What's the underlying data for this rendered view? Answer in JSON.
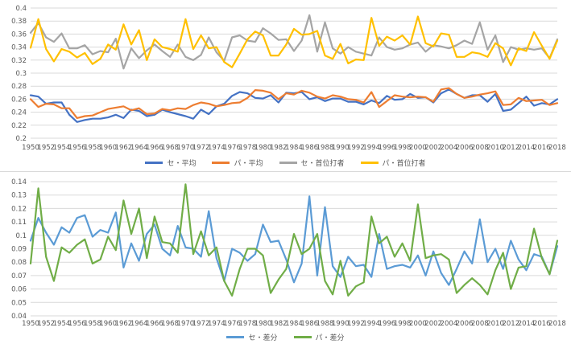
{
  "chart_data": [
    {
      "type": "line",
      "x": [
        1950,
        1951,
        1952,
        1953,
        1954,
        1955,
        1956,
        1957,
        1958,
        1959,
        1960,
        1961,
        1962,
        1963,
        1964,
        1965,
        1966,
        1967,
        1968,
        1969,
        1970,
        1971,
        1972,
        1973,
        1974,
        1975,
        1976,
        1977,
        1978,
        1979,
        1980,
        1981,
        1982,
        1983,
        1984,
        1985,
        1986,
        1987,
        1988,
        1989,
        1990,
        1991,
        1992,
        1993,
        1994,
        1995,
        1996,
        1997,
        1998,
        1999,
        2000,
        2001,
        2002,
        2003,
        2004,
        2005,
        2006,
        2007,
        2008,
        2009,
        2010,
        2011,
        2012,
        2013,
        2014,
        2015,
        2016,
        2017,
        2018
      ],
      "xticks": [
        "1950",
        "1952",
        "1954",
        "1956",
        "1958",
        "1960",
        "1962",
        "1964",
        "1966",
        "1968",
        "1970",
        "1972",
        "1974",
        "1976",
        "1978",
        "1980",
        "1982",
        "1984",
        "1986",
        "1988",
        "1990",
        "1992",
        "1994",
        "1996",
        "1998",
        "2000",
        "2002",
        "2004",
        "2006",
        "2008",
        "2010",
        "2012",
        "2014",
        "2016",
        "2018"
      ],
      "ylim": [
        0.2,
        0.4
      ],
      "yticks": [
        "0.2",
        "0.22",
        "0.24",
        "0.26",
        "0.28",
        "0.3",
        "0.32",
        "0.34",
        "0.36",
        "0.38",
        "0.4"
      ],
      "grid": true,
      "legend": "bottom",
      "series": [
        {
          "name": "セ・平均",
          "color": "#4472c4",
          "values": [
            0.266,
            0.264,
            0.253,
            0.255,
            0.255,
            0.236,
            0.225,
            0.228,
            0.23,
            0.23,
            0.232,
            0.236,
            0.231,
            0.244,
            0.242,
            0.234,
            0.236,
            0.244,
            0.24,
            0.237,
            0.234,
            0.23,
            0.244,
            0.237,
            0.249,
            0.253,
            0.265,
            0.271,
            0.269,
            0.262,
            0.261,
            0.266,
            0.255,
            0.27,
            0.269,
            0.271,
            0.26,
            0.263,
            0.257,
            0.261,
            0.261,
            0.256,
            0.256,
            0.252,
            0.258,
            0.254,
            0.265,
            0.259,
            0.26,
            0.268,
            0.262,
            0.263,
            0.255,
            0.269,
            0.275,
            0.268,
            0.262,
            0.266,
            0.266,
            0.256,
            0.268,
            0.242,
            0.244,
            0.254,
            0.264,
            0.25,
            0.254,
            0.252,
            0.26
          ]
        },
        {
          "name": "パ・平均",
          "color": "#ed7d31",
          "values": [
            0.26,
            0.248,
            0.253,
            0.252,
            0.246,
            0.246,
            0.231,
            0.234,
            0.235,
            0.24,
            0.245,
            0.247,
            0.249,
            0.243,
            0.246,
            0.237,
            0.238,
            0.245,
            0.243,
            0.246,
            0.245,
            0.251,
            0.255,
            0.253,
            0.249,
            0.251,
            0.254,
            0.255,
            0.262,
            0.274,
            0.273,
            0.27,
            0.26,
            0.269,
            0.267,
            0.273,
            0.27,
            0.264,
            0.261,
            0.266,
            0.264,
            0.26,
            0.259,
            0.255,
            0.271,
            0.248,
            0.257,
            0.266,
            0.264,
            0.263,
            0.264,
            0.263,
            0.256,
            0.275,
            0.277,
            0.268,
            0.262,
            0.264,
            0.267,
            0.269,
            0.272,
            0.251,
            0.252,
            0.262,
            0.257,
            0.258,
            0.259,
            0.251,
            0.254
          ]
        },
        {
          "name": "セ・首位打者",
          "color": "#a5a5a5",
          "values": [
            0.362,
            0.377,
            0.355,
            0.348,
            0.361,
            0.338,
            0.338,
            0.343,
            0.329,
            0.334,
            0.332,
            0.353,
            0.307,
            0.338,
            0.323,
            0.335,
            0.344,
            0.334,
            0.325,
            0.344,
            0.325,
            0.32,
            0.328,
            0.355,
            0.332,
            0.319,
            0.355,
            0.358,
            0.35,
            0.348,
            0.369,
            0.361,
            0.351,
            0.352,
            0.334,
            0.35,
            0.389,
            0.333,
            0.378,
            0.338,
            0.33,
            0.34,
            0.333,
            0.33,
            0.327,
            0.355,
            0.34,
            0.336,
            0.338,
            0.344,
            0.347,
            0.333,
            0.343,
            0.341,
            0.338,
            0.343,
            0.35,
            0.345,
            0.378,
            0.336,
            0.358,
            0.317,
            0.34,
            0.336,
            0.338,
            0.336,
            0.338,
            0.323,
            0.352
          ]
        },
        {
          "name": "パ・首位打者",
          "color": "#ffc000",
          "values": [
            0.339,
            0.383,
            0.337,
            0.318,
            0.337,
            0.333,
            0.324,
            0.331,
            0.314,
            0.322,
            0.344,
            0.336,
            0.375,
            0.344,
            0.366,
            0.32,
            0.352,
            0.34,
            0.337,
            0.333,
            0.383,
            0.337,
            0.358,
            0.338,
            0.34,
            0.317,
            0.309,
            0.33,
            0.352,
            0.364,
            0.358,
            0.327,
            0.327,
            0.344,
            0.368,
            0.359,
            0.36,
            0.365,
            0.327,
            0.322,
            0.345,
            0.315,
            0.321,
            0.32,
            0.385,
            0.342,
            0.356,
            0.35,
            0.358,
            0.344,
            0.387,
            0.346,
            0.341,
            0.361,
            0.359,
            0.325,
            0.325,
            0.332,
            0.33,
            0.325,
            0.346,
            0.338,
            0.312,
            0.338,
            0.334,
            0.363,
            0.342,
            0.322,
            0.35
          ]
        }
      ]
    },
    {
      "type": "line",
      "x": [
        1950,
        1951,
        1952,
        1953,
        1954,
        1955,
        1956,
        1957,
        1958,
        1959,
        1960,
        1961,
        1962,
        1963,
        1964,
        1965,
        1966,
        1967,
        1968,
        1969,
        1970,
        1971,
        1972,
        1973,
        1974,
        1975,
        1976,
        1977,
        1978,
        1979,
        1980,
        1981,
        1982,
        1983,
        1984,
        1985,
        1986,
        1987,
        1988,
        1989,
        1990,
        1991,
        1992,
        1993,
        1994,
        1995,
        1996,
        1997,
        1998,
        1999,
        2000,
        2001,
        2002,
        2003,
        2004,
        2005,
        2006,
        2007,
        2008,
        2009,
        2010,
        2011,
        2012,
        2013,
        2014,
        2015,
        2016,
        2017,
        2018
      ],
      "xticks": [
        "1950",
        "1952",
        "1954",
        "1956",
        "1958",
        "1960",
        "1962",
        "1964",
        "1966",
        "1968",
        "1970",
        "1972",
        "1974",
        "1976",
        "1978",
        "1980",
        "1982",
        "1984",
        "1986",
        "1988",
        "1990",
        "1992",
        "1994",
        "1996",
        "1998",
        "2000",
        "2002",
        "2004",
        "2006",
        "2008",
        "2010",
        "2012",
        "2014",
        "2016",
        "2018"
      ],
      "ylim": [
        0.04,
        0.14
      ],
      "yticks": [
        "0.04",
        "0.05",
        "0.06",
        "0.07",
        "0.08",
        "0.09",
        "0.1",
        "0.11",
        "0.12",
        "0.13",
        "0.14"
      ],
      "grid": true,
      "legend": "bottom",
      "series": [
        {
          "name": "セ・差分",
          "color": "#5b9bd5",
          "values": [
            0.096,
            0.113,
            0.102,
            0.093,
            0.106,
            0.102,
            0.113,
            0.115,
            0.099,
            0.104,
            0.102,
            0.117,
            0.076,
            0.094,
            0.081,
            0.101,
            0.108,
            0.09,
            0.085,
            0.107,
            0.091,
            0.09,
            0.084,
            0.118,
            0.083,
            0.066,
            0.09,
            0.087,
            0.081,
            0.086,
            0.108,
            0.095,
            0.096,
            0.082,
            0.065,
            0.079,
            0.129,
            0.07,
            0.121,
            0.077,
            0.069,
            0.084,
            0.077,
            0.078,
            0.069,
            0.101,
            0.075,
            0.077,
            0.078,
            0.076,
            0.085,
            0.07,
            0.088,
            0.072,
            0.063,
            0.075,
            0.088,
            0.079,
            0.112,
            0.08,
            0.09,
            0.075,
            0.096,
            0.082,
            0.074,
            0.086,
            0.084,
            0.071,
            0.092
          ]
        },
        {
          "name": "パ・差分",
          "color": "#70ad47",
          "values": [
            0.079,
            0.135,
            0.084,
            0.066,
            0.091,
            0.087,
            0.093,
            0.097,
            0.079,
            0.082,
            0.099,
            0.089,
            0.126,
            0.101,
            0.12,
            0.083,
            0.114,
            0.095,
            0.094,
            0.087,
            0.138,
            0.086,
            0.103,
            0.085,
            0.091,
            0.066,
            0.055,
            0.075,
            0.09,
            0.09,
            0.085,
            0.057,
            0.067,
            0.075,
            0.101,
            0.086,
            0.09,
            0.101,
            0.066,
            0.056,
            0.081,
            0.055,
            0.062,
            0.065,
            0.114,
            0.094,
            0.099,
            0.084,
            0.094,
            0.081,
            0.123,
            0.083,
            0.085,
            0.086,
            0.082,
            0.057,
            0.063,
            0.068,
            0.063,
            0.056,
            0.074,
            0.087,
            0.06,
            0.076,
            0.077,
            0.105,
            0.083,
            0.071,
            0.096
          ]
        }
      ]
    }
  ]
}
